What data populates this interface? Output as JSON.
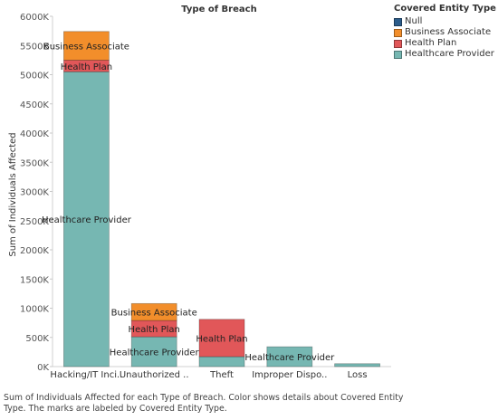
{
  "chart_data": {
    "type": "bar",
    "stacked": true,
    "title": "Type of Breach",
    "xlabel": "",
    "ylabel": "Sum of Individuals Affected",
    "ylim": [
      0,
      6000000
    ],
    "yticks": [
      0,
      500000,
      1000000,
      1500000,
      2000000,
      2500000,
      3000000,
      3500000,
      4000000,
      4500000,
      5000000,
      5500000,
      6000000
    ],
    "ytick_labels": [
      "0K",
      "500K",
      "1000K",
      "1500K",
      "2000K",
      "2500K",
      "3000K",
      "3500K",
      "4000K",
      "4500K",
      "5000K",
      "5500K",
      "6000K"
    ],
    "categories": [
      "Hacking/IT Inci..",
      "Unauthorized ..",
      "Theft",
      "Improper Dispo..",
      "Loss"
    ],
    "series": [
      {
        "name": "Null",
        "color": "#2b5c8a",
        "values": [
          0,
          0,
          0,
          0,
          0
        ]
      },
      {
        "name": "Business Associate",
        "color": "#f28e2b",
        "values": [
          490000,
          290000,
          0,
          0,
          0
        ]
      },
      {
        "name": "Health Plan",
        "color": "#e15759",
        "values": [
          200000,
          280000,
          640000,
          0,
          0
        ]
      },
      {
        "name": "Healthcare Provider",
        "color": "#76b7b2",
        "values": [
          5050000,
          510000,
          170000,
          340000,
          50000
        ]
      }
    ],
    "data_labels": [
      {
        "category": "Hacking/IT Inci..",
        "series": "Business Associate",
        "text": "Business Associate"
      },
      {
        "category": "Hacking/IT Inci..",
        "series": "Health Plan",
        "text": "Health Plan"
      },
      {
        "category": "Hacking/IT Inci..",
        "series": "Healthcare Provider",
        "text": "Healthcare Provider"
      },
      {
        "category": "Unauthorized ..",
        "series": "Business Associate",
        "text": "Business Associate"
      },
      {
        "category": "Unauthorized ..",
        "series": "Health Plan",
        "text": "Health Plan"
      },
      {
        "category": "Unauthorized ..",
        "series": "Healthcare Provider",
        "text": "Healthcare Provider"
      },
      {
        "category": "Theft",
        "series": "Health Plan",
        "text": "Health Plan"
      },
      {
        "category": "Improper Dispo..",
        "series": "Healthcare Provider",
        "text": "Healthcare Provider"
      }
    ],
    "grid": false,
    "legend_position": "right"
  },
  "legend": {
    "title": "Covered Entity Type",
    "items": [
      {
        "label": "Null",
        "color": "#2b5c8a"
      },
      {
        "label": "Business Associate",
        "color": "#f28e2b"
      },
      {
        "label": "Health Plan",
        "color": "#e15759"
      },
      {
        "label": "Healthcare Provider",
        "color": "#76b7b2"
      }
    ]
  },
  "caption": {
    "line1": "Sum of Individuals Affected for each Type of Breach.  Color shows details about Covered Entity",
    "line2": "Type.  The marks are labeled by Covered Entity Type."
  }
}
